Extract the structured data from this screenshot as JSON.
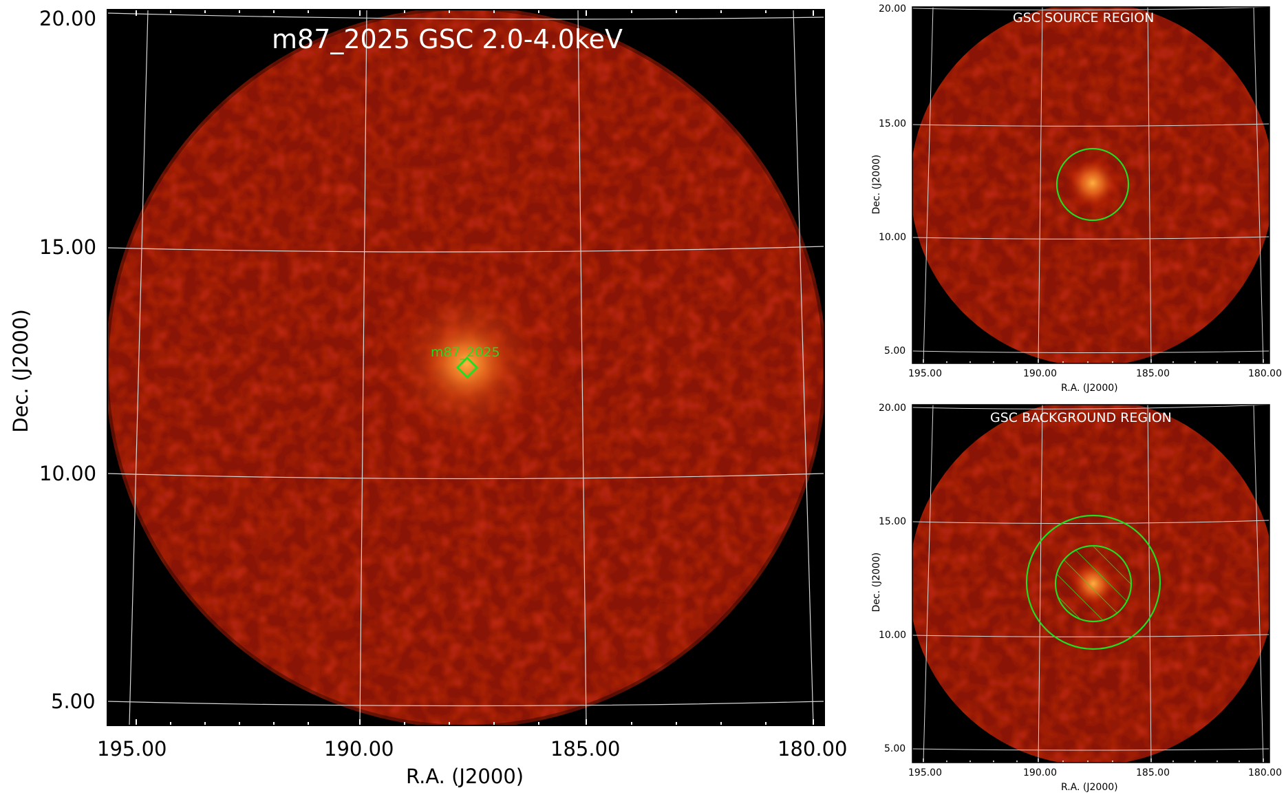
{
  "colors": {
    "frame": "#000000",
    "grid": "#d8d8d8",
    "region": "#22dd22",
    "title": "#ffffff"
  },
  "main": {
    "title": "m87_2025 GSC 2.0-4.0keV",
    "source_label": "m87_2025",
    "xlabel": "R.A. (J2000)",
    "ylabel": "Dec. (J2000)",
    "xticks": [
      "195.00",
      "190.00",
      "185.00",
      "180.00"
    ],
    "yticks": [
      "20.00",
      "15.00",
      "10.00",
      "5.00"
    ]
  },
  "source_panel": {
    "title": "GSC SOURCE REGION",
    "xlabel": "R.A. (J2000)",
    "ylabel": "Dec. (J2000)",
    "xticks": [
      "195.00",
      "190.00",
      "185.00",
      "180.00"
    ],
    "yticks": [
      "20.00",
      "15.00",
      "10.00",
      "5.00"
    ]
  },
  "background_panel": {
    "title": "GSC BACKGROUND REGION",
    "xlabel": "R.A. (J2000)",
    "ylabel": "Dec. (J2000)",
    "xticks": [
      "195.00",
      "190.00",
      "185.00",
      "180.00"
    ],
    "yticks": [
      "20.00",
      "15.00",
      "10.00",
      "5.00"
    ]
  }
}
